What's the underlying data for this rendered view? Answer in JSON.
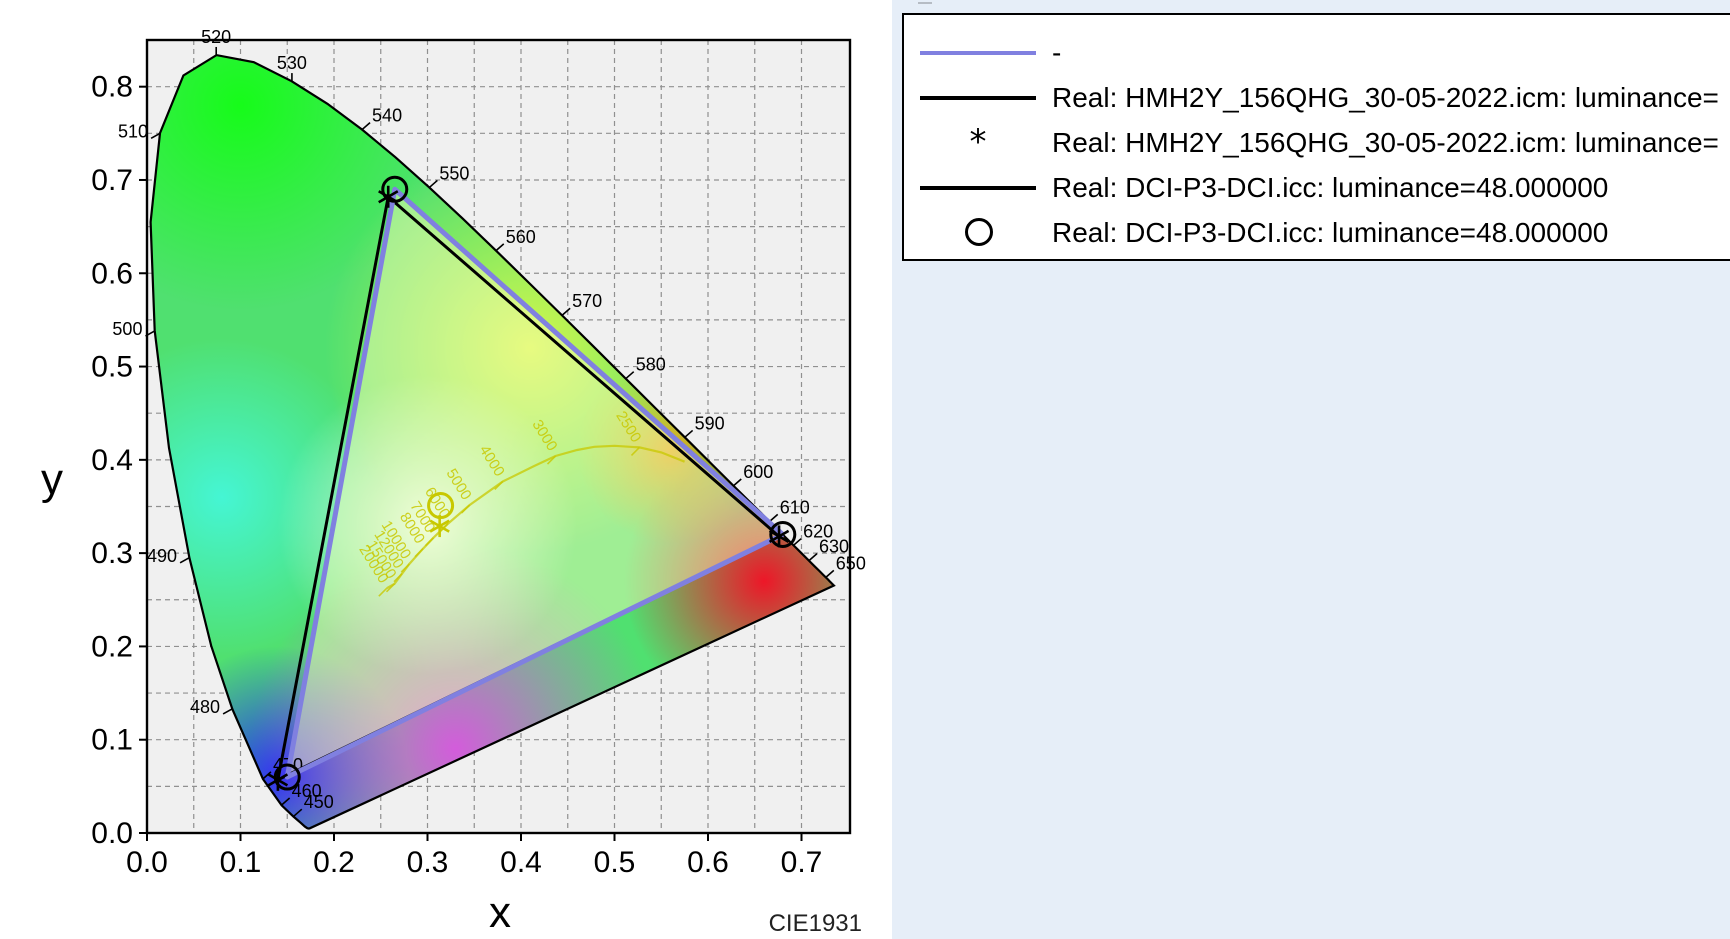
{
  "chart_data": {
    "type": "scatter",
    "title": "",
    "diagram": "CIE1931",
    "caption": "CIE1931",
    "xlabel": "x",
    "ylabel": "y",
    "xlim": [
      0.0,
      0.75
    ],
    "ylim": [
      0.0,
      0.85
    ],
    "x_ticks": [
      "0.0",
      "0.1",
      "0.2",
      "0.3",
      "0.4",
      "0.5",
      "0.6",
      "0.7"
    ],
    "y_ticks": [
      "0.0",
      "0.1",
      "0.2",
      "0.3",
      "0.4",
      "0.5",
      "0.6",
      "0.7",
      "0.8"
    ],
    "grid": true,
    "spectral_locus_labels": [
      {
        "label": "450",
        "x": 0.157,
        "y": 0.018
      },
      {
        "label": "460",
        "x": 0.144,
        "y": 0.03
      },
      {
        "label": "470",
        "x": 0.124,
        "y": 0.058
      },
      {
        "label": "480",
        "x": 0.091,
        "y": 0.133
      },
      {
        "label": "490",
        "x": 0.045,
        "y": 0.295
      },
      {
        "label": "500",
        "x": 0.008,
        "y": 0.538
      },
      {
        "label": "510",
        "x": 0.014,
        "y": 0.75
      },
      {
        "label": "520",
        "x": 0.074,
        "y": 0.834
      },
      {
        "label": "530",
        "x": 0.155,
        "y": 0.806
      },
      {
        "label": "540",
        "x": 0.23,
        "y": 0.754
      },
      {
        "label": "550",
        "x": 0.302,
        "y": 0.692
      },
      {
        "label": "560",
        "x": 0.373,
        "y": 0.624
      },
      {
        "label": "570",
        "x": 0.444,
        "y": 0.555
      },
      {
        "label": "580",
        "x": 0.512,
        "y": 0.487
      },
      {
        "label": "590",
        "x": 0.575,
        "y": 0.424
      },
      {
        "label": "600",
        "x": 0.627,
        "y": 0.372
      },
      {
        "label": "610",
        "x": 0.666,
        "y": 0.334
      },
      {
        "label": "620",
        "x": 0.691,
        "y": 0.308
      },
      {
        "label": "630",
        "x": 0.708,
        "y": 0.292
      },
      {
        "label": "650",
        "x": 0.726,
        "y": 0.274
      }
    ],
    "planckian_labels": [
      "3000",
      "4000",
      "5000",
      "6000",
      "7000",
      "8000",
      "10000",
      "12000",
      "15000",
      "20000",
      "2500"
    ],
    "series": [
      {
        "name": "-",
        "kind": "line",
        "color": "#8080e0",
        "points": [
          [
            0.68,
            0.32
          ],
          [
            0.265,
            0.69
          ],
          [
            0.15,
            0.06
          ],
          [
            0.68,
            0.32
          ]
        ]
      },
      {
        "name": "Real: HMH2Y_156QHG_30-05-2022.icm: luminance=",
        "kind": "line",
        "color": "#000000",
        "points": [
          [
            0.676,
            0.318
          ],
          [
            0.258,
            0.682
          ],
          [
            0.14,
            0.057
          ],
          [
            0.676,
            0.318
          ]
        ]
      },
      {
        "name": "Real: HMH2Y_156QHG_30-05-2022.icm: luminance=",
        "kind": "marker",
        "marker": "asterisk",
        "points": [
          [
            0.676,
            0.318
          ],
          [
            0.258,
            0.682
          ],
          [
            0.14,
            0.057
          ],
          [
            0.313,
            0.329
          ]
        ]
      },
      {
        "name": "Real: DCI-P3-DCI.icc: luminance=48.000000",
        "kind": "line",
        "color": "#000000",
        "points": [
          [
            0.68,
            0.32
          ],
          [
            0.265,
            0.69
          ],
          [
            0.15,
            0.06
          ],
          [
            0.68,
            0.32
          ]
        ]
      },
      {
        "name": "Real: DCI-P3-DCI.icc: luminance=48.000000",
        "kind": "marker",
        "marker": "circle",
        "points": [
          [
            0.68,
            0.32
          ],
          [
            0.265,
            0.69
          ],
          [
            0.15,
            0.06
          ],
          [
            0.314,
            0.351
          ]
        ]
      }
    ]
  },
  "legend": {
    "entries": [
      {
        "style": "line",
        "color": "#8080e0",
        "label": "-"
      },
      {
        "style": "line",
        "color": "#000000",
        "label": "Real: HMH2Y_156QHG_30-05-2022.icm: luminance="
      },
      {
        "style": "asterisk",
        "glyph": "*",
        "label": "Real: HMH2Y_156QHG_30-05-2022.icm: luminance="
      },
      {
        "style": "line",
        "color": "#000000",
        "label": "Real: DCI-P3-DCI.icc: luminance=48.000000"
      },
      {
        "style": "circle",
        "label": "Real: DCI-P3-DCI.icc: luminance=48.000000"
      }
    ]
  }
}
